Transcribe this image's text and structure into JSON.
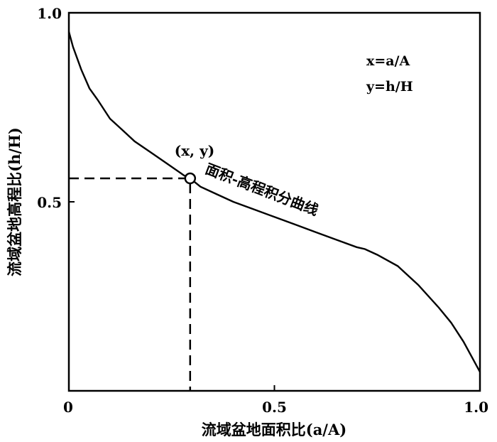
{
  "chart_data": {
    "type": "line",
    "xlabel": "流域盆地面积比(a/A)",
    "ylabel": "流域盆地高程比(h/H)",
    "xlim": [
      0,
      1.0
    ],
    "ylim": [
      0,
      1.0
    ],
    "x_ticks": [
      {
        "value": 0,
        "label": "0"
      },
      {
        "value": 0.5,
        "label": "0.5"
      },
      {
        "value": 1.0,
        "label": "1.0"
      }
    ],
    "y_ticks": [
      {
        "value": 0.5,
        "label": "0.5"
      },
      {
        "value": 1.0,
        "label": "1.0"
      }
    ],
    "grid": false,
    "series": [
      {
        "x": [
          0.0,
          0.01,
          0.02,
          0.03,
          0.05,
          0.07,
          0.1,
          0.13,
          0.16,
          0.2,
          0.24,
          0.28,
          0.295,
          0.32,
          0.36,
          0.4,
          0.45,
          0.5,
          0.55,
          0.6,
          0.65,
          0.7,
          0.72,
          0.75,
          0.8,
          0.85,
          0.9,
          0.93,
          0.96,
          0.98,
          1.0
        ],
        "y": [
          0.95,
          0.91,
          0.88,
          0.85,
          0.8,
          0.77,
          0.72,
          0.69,
          0.66,
          0.63,
          0.6,
          0.57,
          0.562,
          0.54,
          0.52,
          0.5,
          0.48,
          0.46,
          0.44,
          0.42,
          0.4,
          0.38,
          0.375,
          0.36,
          0.33,
          0.28,
          0.22,
          0.18,
          0.13,
          0.09,
          0.05
        ]
      }
    ],
    "marked_point": {
      "x": 0.295,
      "y": 0.562,
      "label": "(x, y)"
    },
    "curve_label": "面积-高程积分曲线",
    "annotations": [
      "x=a/A",
      "y=h/H"
    ]
  }
}
